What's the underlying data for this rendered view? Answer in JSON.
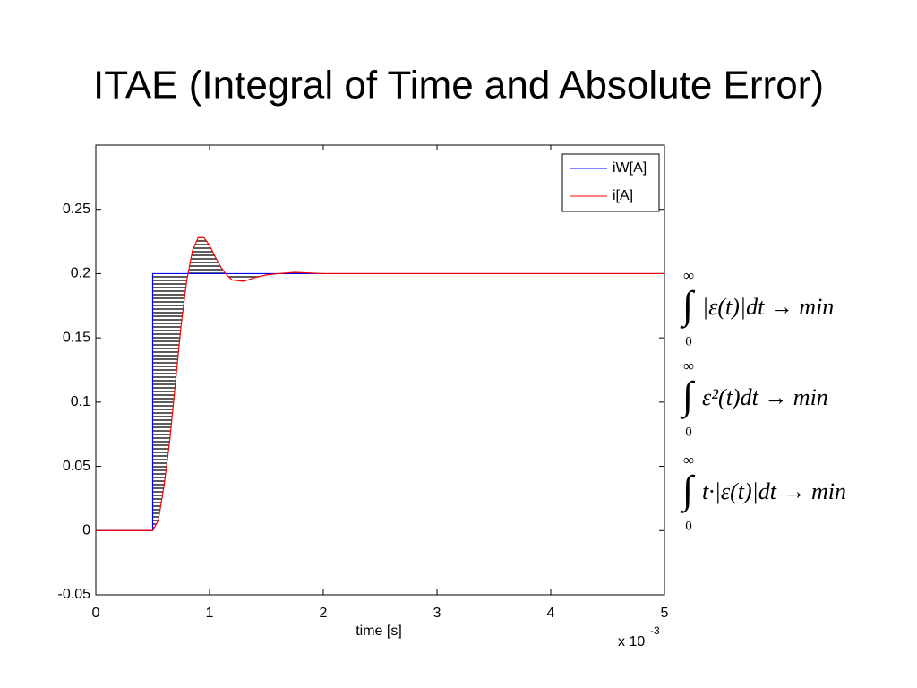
{
  "chart_data": {
    "type": "line",
    "title": "ITAE (Integral of Time and Absolute Error)",
    "x_label": "time [s]",
    "x_multiplier": {
      "text": "x 10",
      "exponent": "-3"
    },
    "x": [
      0,
      0.5,
      0.5,
      0.55,
      0.6,
      0.65,
      0.7,
      0.75,
      0.8,
      0.85,
      0.9,
      0.95,
      1.0,
      1.05,
      1.1,
      1.15,
      1.2,
      1.3,
      1.4,
      1.5,
      1.6,
      1.75,
      2,
      3,
      4,
      5
    ],
    "series": [
      {
        "name": "iW[A]",
        "color": "#0000ff",
        "values": [
          0,
          0,
          0.2,
          0.2,
          0.2,
          0.2,
          0.2,
          0.2,
          0.2,
          0.2,
          0.2,
          0.2,
          0.2,
          0.2,
          0.2,
          0.2,
          0.2,
          0.2,
          0.2,
          0.2,
          0.2,
          0.2,
          0.2,
          0.2,
          0.2,
          0.2
        ]
      },
      {
        "name": "i[A]",
        "color": "#ff0000",
        "values": [
          0,
          0,
          0,
          0.008,
          0.035,
          0.07,
          0.115,
          0.16,
          0.195,
          0.218,
          0.228,
          0.228,
          0.222,
          0.213,
          0.205,
          0.199,
          0.195,
          0.194,
          0.197,
          0.199,
          0.2,
          0.201,
          0.2,
          0.2,
          0.2,
          0.2
        ]
      }
    ],
    "xlim": [
      0,
      5
    ],
    "xticks": [
      0,
      1,
      2,
      3,
      4,
      5
    ],
    "ylim": [
      -0.05,
      0.3
    ],
    "yticks": [
      -0.05,
      0,
      0.05,
      0.1,
      0.15,
      0.2,
      0.25
    ],
    "legend": "upper right"
  },
  "integral_symbol": "∫",
  "formulas": [
    {
      "upper": "∞",
      "lower": "0",
      "integrand": "|ε(t)|dt → min"
    },
    {
      "upper": "∞",
      "lower": "0",
      "integrand": "ε²(t)dt → min"
    },
    {
      "upper": "∞",
      "lower": "0",
      "integrand": "t·|ε(t)|dt → min"
    }
  ]
}
